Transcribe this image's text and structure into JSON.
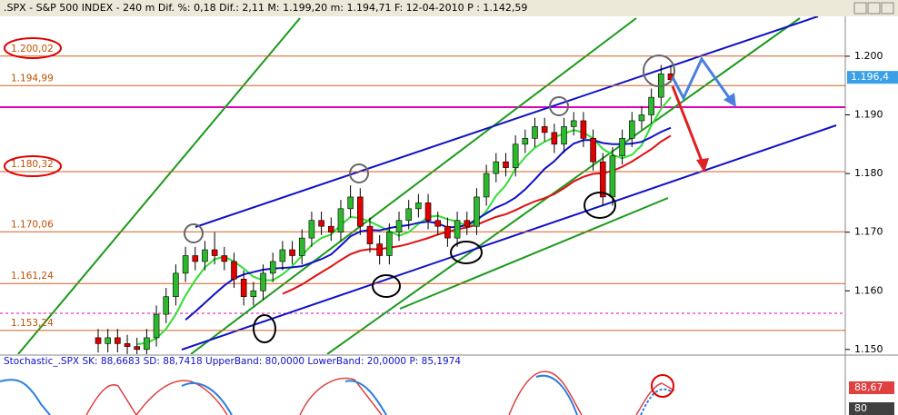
{
  "chart_data": {
    "type": "candlestick",
    "title": ".SPX - S&P 500 INDEX - 240 m Dif. %: 0,18 Dif.: 2,11 M: 1.199,20 m: 1.194,71 F: 12-04-2010 P : 1.142,59",
    "open": [
      1152,
      1151,
      1152,
      1151,
      1150.5,
      1150,
      1152,
      1156,
      1159,
      1163,
      1166,
      1165,
      1167,
      1166,
      1165,
      1162,
      1159,
      1160,
      1163,
      1165,
      1167,
      1166,
      1169,
      1172,
      1171,
      1170,
      1174,
      1176,
      1171,
      1168,
      1166,
      1170,
      1172,
      1174,
      1175,
      1172,
      1171,
      1169,
      1172,
      1171,
      1176,
      1180,
      1182,
      1181,
      1185,
      1186,
      1188,
      1187,
      1185,
      1188,
      1189,
      1186,
      1182,
      1176,
      1183,
      1186,
      1189,
      1190,
      1193,
      1197
    ],
    "high": [
      1153.5,
      1153.5,
      1153.5,
      1152.5,
      1152,
      1153.5,
      1157.5,
      1160.5,
      1164.5,
      1167.5,
      1167.5,
      1168.5,
      1170,
      1167.5,
      1166.5,
      1163.5,
      1161.5,
      1164.5,
      1166.5,
      1168.5,
      1168.5,
      1170.5,
      1173.5,
      1173.5,
      1172.5,
      1175.5,
      1178,
      1177.5,
      1172.5,
      1169.5,
      1171.5,
      1173.5,
      1175.5,
      1176.5,
      1176.5,
      1173.5,
      1172.5,
      1173.5,
      1173.5,
      1177.5,
      1181.5,
      1183.5,
      1183.5,
      1186.5,
      1187.5,
      1189.5,
      1189.5,
      1188.5,
      1189.5,
      1190.5,
      1190.5,
      1187.5,
      1183.5,
      1184.5,
      1187.5,
      1190.5,
      1191.5,
      1194.5,
      1198.5,
      1198.5
    ],
    "low": [
      1149.5,
      1149.5,
      1149.5,
      1149,
      1148.5,
      1148.5,
      1150.5,
      1154.5,
      1157.5,
      1161.5,
      1163.5,
      1163.5,
      1164.5,
      1163.5,
      1160.5,
      1157.5,
      1157.5,
      1158.5,
      1161.5,
      1163.5,
      1164.5,
      1164.5,
      1167.5,
      1169.5,
      1168.5,
      1168.5,
      1172.5,
      1169.5,
      1166.5,
      1164.5,
      1164.5,
      1168.5,
      1170.5,
      1172.5,
      1170.5,
      1169.5,
      1167.5,
      1167.5,
      1169.5,
      1169.5,
      1174.5,
      1178.5,
      1179.5,
      1179.5,
      1183.5,
      1184.5,
      1185.5,
      1183.5,
      1183.5,
      1186.5,
      1184.5,
      1180.5,
      1174.5,
      1174.5,
      1181.5,
      1184.5,
      1187.5,
      1188.5,
      1191.5,
      1195.5
    ],
    "close": [
      1151,
      1152,
      1151,
      1150.5,
      1150,
      1152,
      1156,
      1159,
      1163,
      1166,
      1165,
      1167,
      1166,
      1165,
      1162,
      1159,
      1160,
      1163,
      1165,
      1167,
      1166,
      1169,
      1172,
      1171,
      1170,
      1174,
      1176,
      1171,
      1168,
      1166,
      1170,
      1172,
      1174,
      1175,
      1172,
      1171,
      1169,
      1172,
      1171,
      1176,
      1180,
      1182,
      1181,
      1185,
      1186,
      1188,
      1187,
      1185,
      1188,
      1189,
      1186,
      1182,
      1176,
      1183,
      1186,
      1189,
      1190,
      1193,
      1197,
      1196
    ],
    "up_color": "#2db82d",
    "down_color": "#e00000",
    "ylim": [
      1149.2,
      1206.8
    ],
    "yticks": [
      {
        "value": 1150,
        "label": "1.150"
      },
      {
        "value": 1160,
        "label": "1.160"
      },
      {
        "value": 1170,
        "label": "1.170"
      },
      {
        "value": 1180,
        "label": "1.180"
      },
      {
        "value": 1190,
        "label": "1.190"
      },
      {
        "value": 1200,
        "label": "1.200"
      }
    ],
    "levels": [
      {
        "value": 1200.02,
        "label": "1.200,02"
      },
      {
        "value": 1194.99,
        "label": "1.194,99"
      },
      {
        "value": 1180.32,
        "label": "1.180,32"
      },
      {
        "value": 1170.06,
        "label": "1.170,06"
      },
      {
        "value": 1161.24,
        "label": "1.161,24"
      },
      {
        "value": 1153.24,
        "label": "1.153,24"
      }
    ],
    "last_price": {
      "value": 1196.4,
      "label": "1.196,4"
    },
    "stochastic": {
      "title": "Stochastic_.SPX SK: 88,6683 SD: 88,7418 UpperBand: 80,0000 LowerBand: 20,0000 P: 85,1974",
      "sk_label": "88,67",
      "upper_label": "80"
    }
  }
}
